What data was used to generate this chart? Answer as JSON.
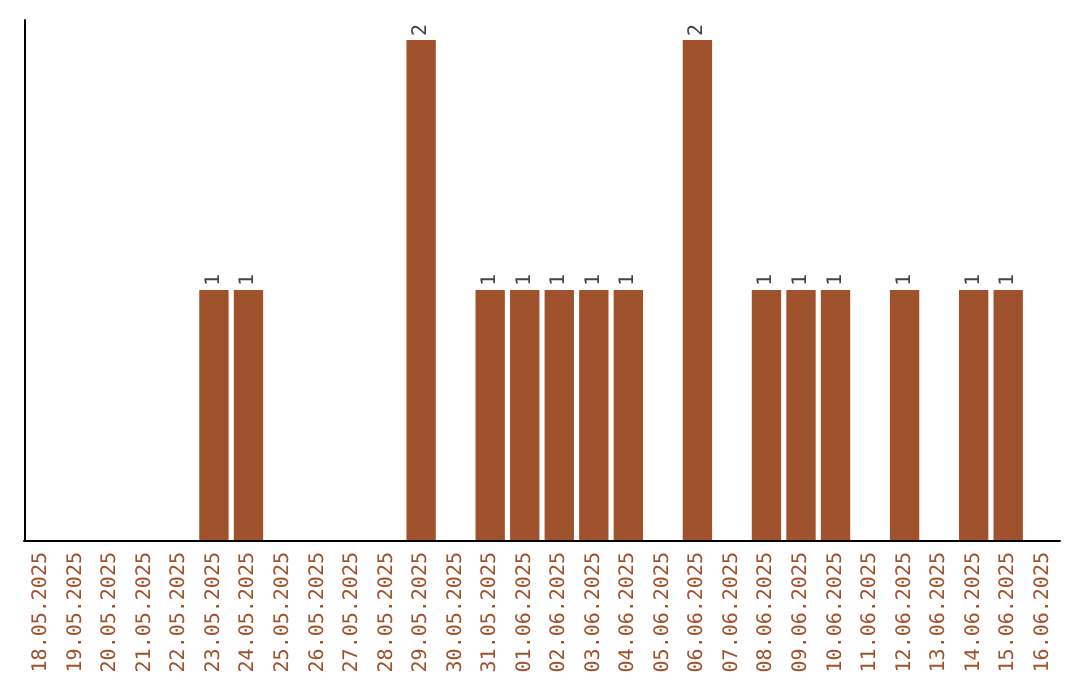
{
  "chart_data": {
    "type": "bar",
    "categories": [
      "18.05.2025",
      "19.05.2025",
      "20.05.2025",
      "21.05.2025",
      "22.05.2025",
      "23.05.2025",
      "24.05.2025",
      "25.05.2025",
      "26.05.2025",
      "27.05.2025",
      "28.05.2025",
      "29.05.2025",
      "30.05.2025",
      "31.05.2025",
      "01.06.2025",
      "02.06.2025",
      "03.06.2025",
      "04.06.2025",
      "05.06.2025",
      "06.06.2025",
      "07.06.2025",
      "08.06.2025",
      "09.06.2025",
      "10.06.2025",
      "11.06.2025",
      "12.06.2025",
      "13.06.2025",
      "14.06.2025",
      "15.06.2025",
      "16.06.2025"
    ],
    "values": [
      0,
      0,
      0,
      0,
      0,
      1,
      1,
      0,
      0,
      0,
      0,
      2,
      0,
      1,
      1,
      1,
      1,
      1,
      0,
      2,
      0,
      1,
      1,
      1,
      0,
      1,
      0,
      1,
      1,
      0
    ],
    "value_labels": [
      null,
      null,
      null,
      null,
      null,
      "1",
      "1",
      null,
      null,
      null,
      null,
      "2",
      null,
      "1",
      "1",
      "1",
      "1",
      "1",
      null,
      "2",
      null,
      "1",
      "1",
      "1",
      null,
      "1",
      null,
      "1",
      "1",
      null
    ],
    "color": "#a0522d",
    "ylim": [
      0,
      2.08
    ],
    "tick_labels": "x"
  }
}
